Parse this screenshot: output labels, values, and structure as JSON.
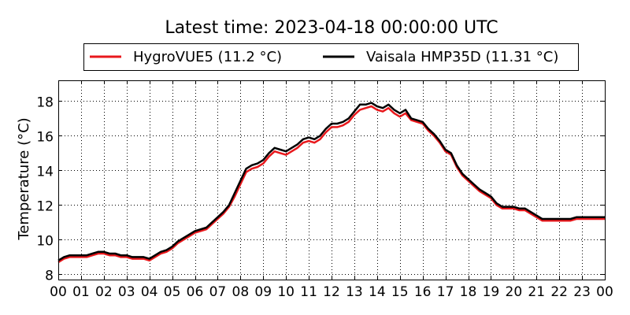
{
  "chart_data": {
    "type": "line",
    "title": "Latest time: 2023-04-18 00:00:00 UTC",
    "xlabel": "",
    "ylabel": "Temperature (°C)",
    "x_ticks": [
      "00",
      "01",
      "02",
      "03",
      "04",
      "05",
      "06",
      "07",
      "08",
      "09",
      "10",
      "11",
      "12",
      "13",
      "14",
      "15",
      "16",
      "17",
      "18",
      "19",
      "20",
      "21",
      "22",
      "23",
      "00"
    ],
    "xlim": [
      0,
      24
    ],
    "ylim": [
      7.7,
      19.2
    ],
    "y_ticks": [
      8,
      10,
      12,
      14,
      16,
      18
    ],
    "grid": true,
    "legend_placement": "top-center",
    "x": [
      0,
      0.25,
      0.5,
      0.75,
      1,
      1.25,
      1.5,
      1.75,
      2,
      2.25,
      2.5,
      2.75,
      3,
      3.25,
      3.5,
      3.75,
      4,
      4.25,
      4.5,
      4.75,
      5,
      5.25,
      5.5,
      5.75,
      6,
      6.25,
      6.5,
      6.75,
      7,
      7.25,
      7.5,
      7.75,
      8,
      8.25,
      8.5,
      8.75,
      9,
      9.25,
      9.5,
      9.75,
      10,
      10.25,
      10.5,
      10.75,
      11,
      11.25,
      11.5,
      11.75,
      12,
      12.25,
      12.5,
      12.75,
      13,
      13.25,
      13.5,
      13.75,
      14,
      14.25,
      14.5,
      14.75,
      15,
      15.25,
      15.5,
      15.75,
      16,
      16.25,
      16.5,
      16.75,
      17,
      17.25,
      17.5,
      17.75,
      18,
      18.25,
      18.5,
      18.75,
      19,
      19.25,
      19.5,
      19.75,
      20,
      20.25,
      20.5,
      20.75,
      21,
      21.25,
      21.5,
      21.75,
      22,
      22.25,
      22.5,
      22.75,
      23,
      23.25,
      23.5,
      23.75,
      24
    ],
    "series": [
      {
        "name": "HygroVUE5 (11.2 °C)",
        "color": "#e8181c",
        "values": [
          8.7,
          8.9,
          9.0,
          9.0,
          9.0,
          9.0,
          9.1,
          9.2,
          9.2,
          9.1,
          9.1,
          9.0,
          9.0,
          8.9,
          8.9,
          8.9,
          8.8,
          9.0,
          9.2,
          9.3,
          9.5,
          9.8,
          10.0,
          10.2,
          10.4,
          10.5,
          10.6,
          10.9,
          11.2,
          11.5,
          11.9,
          12.5,
          13.2,
          13.9,
          14.1,
          14.2,
          14.4,
          14.8,
          15.1,
          15.0,
          14.9,
          15.1,
          15.3,
          15.6,
          15.7,
          15.6,
          15.8,
          16.2,
          16.5,
          16.5,
          16.6,
          16.8,
          17.2,
          17.5,
          17.6,
          17.7,
          17.5,
          17.4,
          17.6,
          17.3,
          17.1,
          17.3,
          16.9,
          16.8,
          16.7,
          16.3,
          16.0,
          15.6,
          15.1,
          14.9,
          14.2,
          13.7,
          13.4,
          13.1,
          12.8,
          12.6,
          12.4,
          12.0,
          11.8,
          11.8,
          11.8,
          11.7,
          11.7,
          11.5,
          11.3,
          11.1,
          11.1,
          11.1,
          11.1,
          11.1,
          11.1,
          11.2,
          11.2,
          11.2,
          11.2,
          11.2,
          11.2
        ]
      },
      {
        "name": "Vaisala HMP35D (11.31 °C)",
        "color": "#000000",
        "values": [
          8.8,
          9.0,
          9.1,
          9.1,
          9.1,
          9.1,
          9.2,
          9.3,
          9.3,
          9.2,
          9.2,
          9.1,
          9.1,
          9.0,
          9.0,
          9.0,
          8.9,
          9.1,
          9.3,
          9.4,
          9.6,
          9.9,
          10.1,
          10.3,
          10.5,
          10.6,
          10.7,
          11.0,
          11.3,
          11.6,
          12.0,
          12.7,
          13.4,
          14.1,
          14.3,
          14.4,
          14.6,
          15.0,
          15.3,
          15.2,
          15.1,
          15.3,
          15.5,
          15.8,
          15.9,
          15.8,
          16.0,
          16.4,
          16.7,
          16.7,
          16.8,
          17.0,
          17.4,
          17.8,
          17.8,
          17.9,
          17.7,
          17.6,
          17.8,
          17.5,
          17.3,
          17.5,
          17.0,
          16.9,
          16.8,
          16.4,
          16.1,
          15.7,
          15.2,
          15.0,
          14.3,
          13.8,
          13.5,
          13.2,
          12.9,
          12.7,
          12.5,
          12.1,
          11.9,
          11.9,
          11.9,
          11.8,
          11.8,
          11.6,
          11.4,
          11.2,
          11.2,
          11.2,
          11.2,
          11.2,
          11.2,
          11.3,
          11.3,
          11.3,
          11.3,
          11.3,
          11.3
        ]
      }
    ]
  }
}
